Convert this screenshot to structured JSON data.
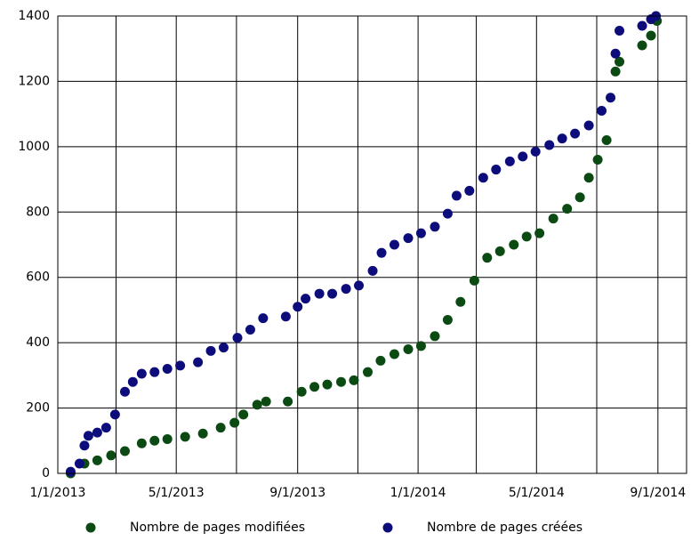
{
  "chart_data": {
    "type": "scatter",
    "xlim": [
      "2013-01-01",
      "2014-09-30"
    ],
    "ylim": [
      0,
      1400
    ],
    "yticks": [
      0,
      200,
      400,
      600,
      800,
      1000,
      1200,
      1400
    ],
    "xticks": [
      {
        "value": "2013-01-01",
        "label": "1/1/2013"
      },
      {
        "value": "2013-05-01",
        "label": "5/1/2013"
      },
      {
        "value": "2013-09-01",
        "label": "9/1/2013"
      },
      {
        "value": "2014-01-01",
        "label": "1/1/2014"
      },
      {
        "value": "2014-05-01",
        "label": "5/1/2014"
      },
      {
        "value": "2014-09-01",
        "label": "9/1/2014"
      }
    ],
    "x_minor_ticks": [
      "2013-03-01",
      "2013-07-01",
      "2013-11-01",
      "2014-03-01",
      "2014-07-01"
    ],
    "grid": true,
    "legend": "bottom",
    "series": [
      {
        "name": "Nombre de pages modifiées",
        "color": "#0b4a12",
        "x": [
          "2013-01-14",
          "2013-01-28",
          "2013-02-10",
          "2013-02-24",
          "2013-03-10",
          "2013-03-27",
          "2013-04-09",
          "2013-04-22",
          "2013-05-10",
          "2013-05-28",
          "2013-06-15",
          "2013-06-29",
          "2013-07-08",
          "2013-07-22",
          "2013-07-31",
          "2013-08-22",
          "2013-09-05",
          "2013-09-18",
          "2013-10-01",
          "2013-10-15",
          "2013-10-28",
          "2013-11-11",
          "2013-11-24",
          "2013-12-08",
          "2013-12-22",
          "2014-01-04",
          "2014-01-18",
          "2014-01-31",
          "2014-02-13",
          "2014-02-27",
          "2014-03-12",
          "2014-03-25",
          "2014-04-08",
          "2014-04-21",
          "2014-05-04",
          "2014-05-18",
          "2014-06-01",
          "2014-06-14",
          "2014-06-23",
          "2014-07-02",
          "2014-07-11",
          "2014-07-20",
          "2014-07-24",
          "2014-08-16",
          "2014-08-25",
          "2014-08-31"
        ],
        "values": [
          0,
          30,
          40,
          55,
          68,
          92,
          100,
          105,
          112,
          122,
          140,
          155,
          180,
          210,
          220,
          220,
          250,
          265,
          272,
          280,
          285,
          310,
          345,
          365,
          380,
          390,
          420,
          470,
          525,
          590,
          660,
          680,
          700,
          725,
          735,
          780,
          810,
          845,
          905,
          960,
          1020,
          1230,
          1260,
          1310,
          1340,
          1385
        ]
      },
      {
        "name": "Nombre de pages créées",
        "color": "#0c0c7a",
        "x": [
          "2013-01-14",
          "2013-01-23",
          "2013-01-28",
          "2013-02-01",
          "2013-02-10",
          "2013-02-19",
          "2013-02-28",
          "2013-03-10",
          "2013-03-18",
          "2013-03-27",
          "2013-04-09",
          "2013-04-22",
          "2013-05-05",
          "2013-05-23",
          "2013-06-05",
          "2013-06-18",
          "2013-07-02",
          "2013-07-15",
          "2013-07-28",
          "2013-08-20",
          "2013-09-01",
          "2013-09-09",
          "2013-09-23",
          "2013-10-06",
          "2013-10-20",
          "2013-11-02",
          "2013-11-16",
          "2013-11-25",
          "2013-12-08",
          "2013-12-22",
          "2014-01-04",
          "2014-01-18",
          "2014-01-31",
          "2014-02-09",
          "2014-02-22",
          "2014-03-08",
          "2014-03-21",
          "2014-04-04",
          "2014-04-17",
          "2014-04-30",
          "2014-05-14",
          "2014-05-27",
          "2014-06-09",
          "2014-06-23",
          "2014-07-06",
          "2014-07-15",
          "2014-07-20",
          "2014-07-24",
          "2014-08-16",
          "2014-08-25",
          "2014-08-30"
        ],
        "values": [
          5,
          30,
          85,
          115,
          125,
          140,
          180,
          250,
          280,
          305,
          310,
          320,
          330,
          340,
          375,
          385,
          415,
          440,
          475,
          480,
          510,
          535,
          550,
          550,
          565,
          575,
          620,
          675,
          700,
          720,
          735,
          755,
          795,
          850,
          865,
          905,
          930,
          955,
          970,
          985,
          1005,
          1025,
          1040,
          1065,
          1110,
          1150,
          1285,
          1355,
          1370,
          1390,
          1400
        ]
      }
    ]
  }
}
